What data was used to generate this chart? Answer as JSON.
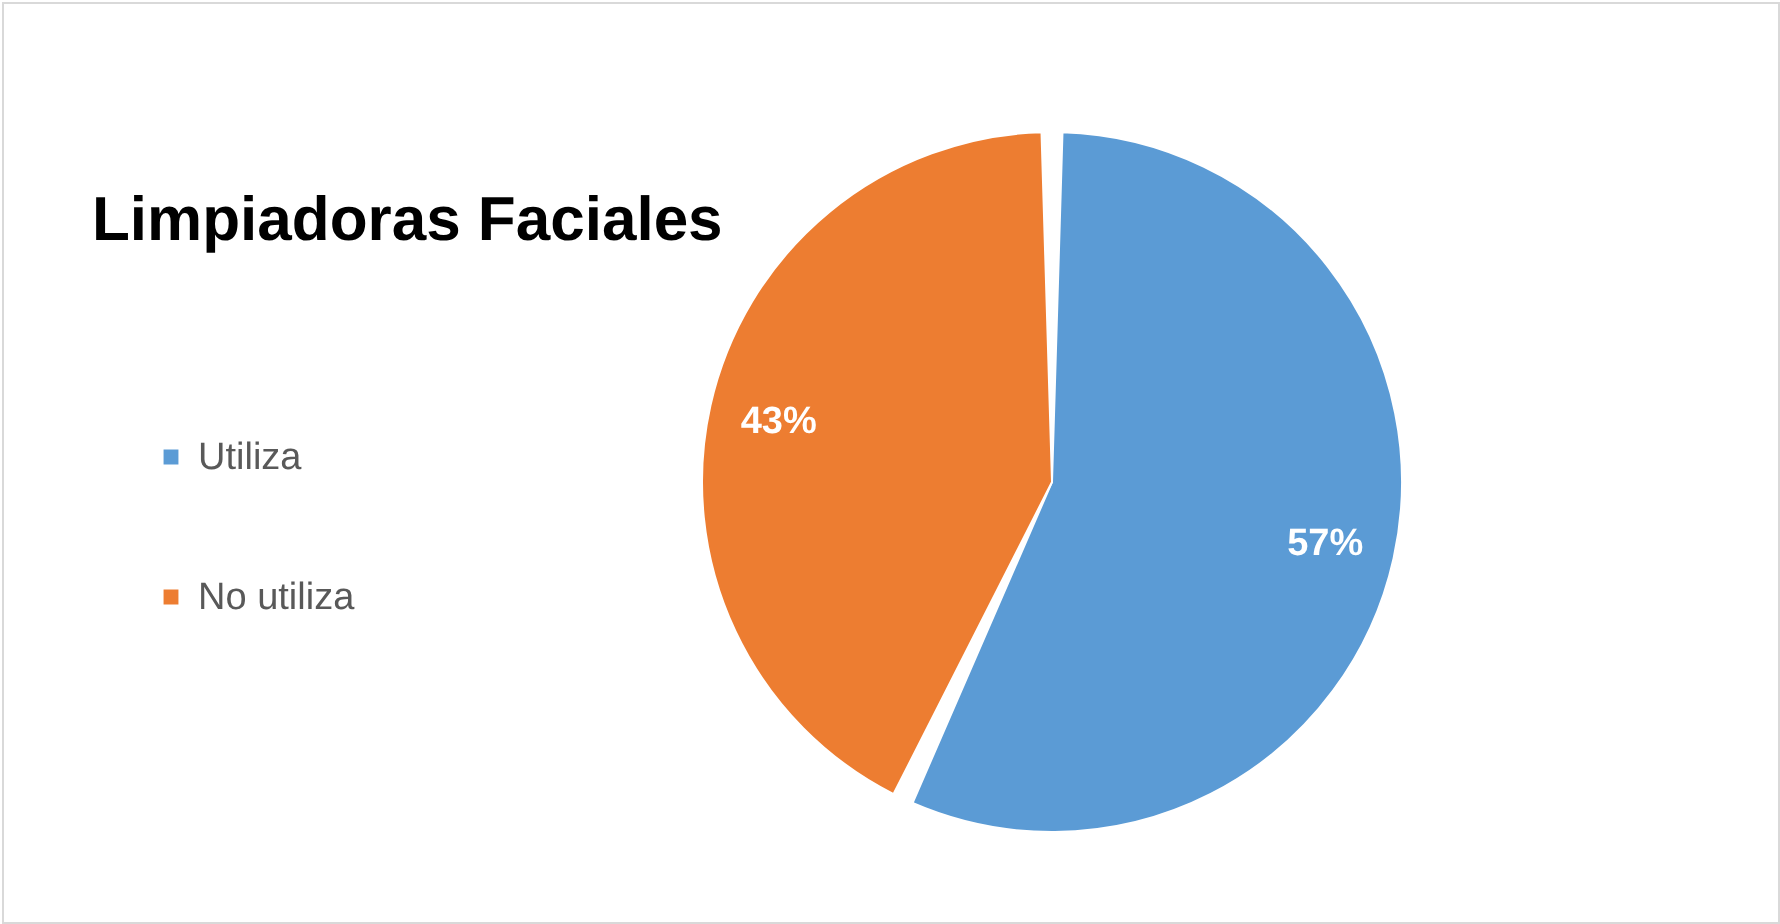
{
  "chart_data": {
    "type": "pie",
    "title": "Limpiadoras Faciales",
    "categories": [
      "Utiliza",
      "No utiliza"
    ],
    "values": [
      57,
      43
    ],
    "colors": [
      "#5b9bd5",
      "#ed7d31"
    ],
    "value_labels": [
      "57%",
      "43%"
    ],
    "legend": "left"
  }
}
